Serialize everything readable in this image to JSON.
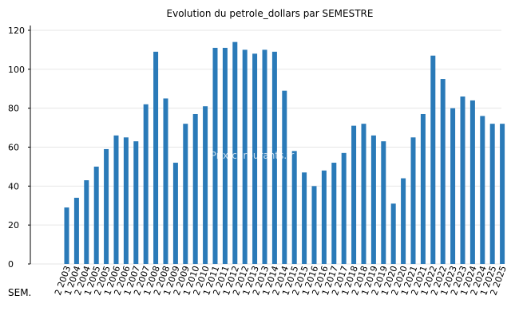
{
  "chart_data": {
    "type": "bar",
    "title": "Evolution du petrole_dollars par SEMESTRE",
    "xlabel": "SEM.",
    "ylabel": "",
    "watermark": "Prix-carburants.fr",
    "ylim": [
      0,
      120
    ],
    "yticks": [
      0,
      20,
      40,
      60,
      80,
      100,
      120
    ],
    "grid": true,
    "bar_color": "#2a7ab8",
    "categories": [
      "2 2003",
      "1 2004",
      "2 2004",
      "1 2005",
      "2 2005",
      "1 2006",
      "2 2006",
      "1 2007",
      "2 2007",
      "1 2008",
      "2 2008",
      "1 2009",
      "2 2009",
      "1 2010",
      "2 2010",
      "1 2011",
      "2 2011",
      "1 2012",
      "2 2012",
      "1 2013",
      "2 2013",
      "1 2014",
      "2 2014",
      "1 2015",
      "2 2015",
      "1 2016",
      "2 2016",
      "1 2017",
      "2 2017",
      "1 2018",
      "2 2018",
      "1 2019",
      "2 2019",
      "1 2020",
      "2 2020",
      "1 2021",
      "2 2021",
      "1 2022",
      "2 2022",
      "1 2023",
      "2 2023",
      "1 2024",
      "2 2024",
      "1 2025",
      "2 2025"
    ],
    "values": [
      29,
      34,
      43,
      50,
      59,
      66,
      65,
      63,
      82,
      109,
      85,
      52,
      72,
      77,
      81,
      111,
      111,
      114,
      110,
      108,
      110,
      109,
      89,
      58,
      47,
      40,
      48,
      52,
      57,
      71,
      72,
      66,
      63,
      31,
      44,
      65,
      77,
      107,
      95,
      80,
      86,
      84,
      76,
      72,
      72
    ]
  }
}
